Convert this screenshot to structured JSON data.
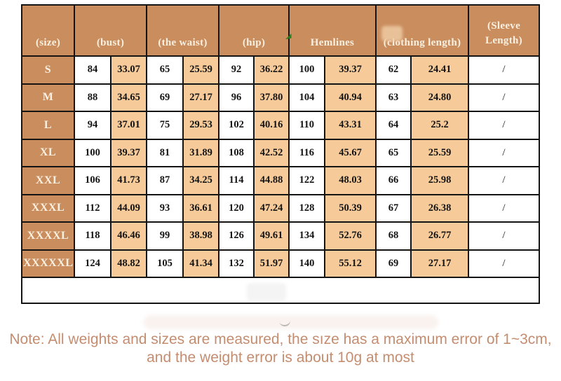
{
  "colors": {
    "header_brown": "#C98D5E",
    "cell_peach": "#F6CA99",
    "cell_white": "#FFFFFF",
    "border_black": "#141414",
    "header_text": "#FAF0E1",
    "note_text": "#C48D70",
    "arrow_green": "#2E7A1C"
  },
  "table": {
    "headers": {
      "size": "(size)",
      "bust": "(bust)",
      "waist": "(the waist)",
      "hip": "(hip)",
      "hemlines": "Hemlines",
      "clothing": "(clothing length)",
      "sleeve_line1": "(Sleeve",
      "sleeve_line2": "Length)"
    },
    "rows": [
      {
        "size": "S",
        "values": [
          "84",
          "33.07",
          "65",
          "25.59",
          "92",
          "36.22",
          "100",
          "39.37",
          "62",
          "24.41"
        ],
        "sleeve": "/"
      },
      {
        "size": "M",
        "values": [
          "88",
          "34.65",
          "69",
          "27.17",
          "96",
          "37.80",
          "104",
          "40.94",
          "63",
          "24.80"
        ],
        "sleeve": "/"
      },
      {
        "size": "L",
        "values": [
          "94",
          "37.01",
          "75",
          "29.53",
          "102",
          "40.16",
          "110",
          "43.31",
          "64",
          "25.2"
        ],
        "sleeve": "/"
      },
      {
        "size": "XL",
        "values": [
          "100",
          "39.37",
          "81",
          "31.89",
          "108",
          "42.52",
          "116",
          "45.67",
          "65",
          "25.59"
        ],
        "sleeve": "/"
      },
      {
        "size": "XXL",
        "values": [
          "106",
          "41.73",
          "87",
          "34.25",
          "114",
          "44.88",
          "122",
          "48.03",
          "66",
          "25.98"
        ],
        "sleeve": "/"
      },
      {
        "size": "XXXL",
        "values": [
          "112",
          "44.09",
          "93",
          "36.61",
          "120",
          "47.24",
          "128",
          "50.39",
          "67",
          "26.38"
        ],
        "sleeve": "/"
      },
      {
        "size": "XXXXL",
        "values": [
          "118",
          "46.46",
          "99",
          "38.98",
          "126",
          "49.61",
          "134",
          "52.76",
          "68",
          "26.77"
        ],
        "sleeve": "/"
      },
      {
        "size": "XXXXXL",
        "values": [
          "124",
          "48.82",
          "105",
          "41.34",
          "132",
          "51.97",
          "140",
          "55.12",
          "69",
          "27.17"
        ],
        "sleeve": "/"
      }
    ]
  },
  "note": {
    "line1": "Note: All weights and sizes are measured, the sıze has a maximum error of 1~3cm,",
    "line2": "and the weight error is about 10g at most"
  },
  "icons": {
    "green_arrow": "green-cursor-arrow-icon"
  }
}
